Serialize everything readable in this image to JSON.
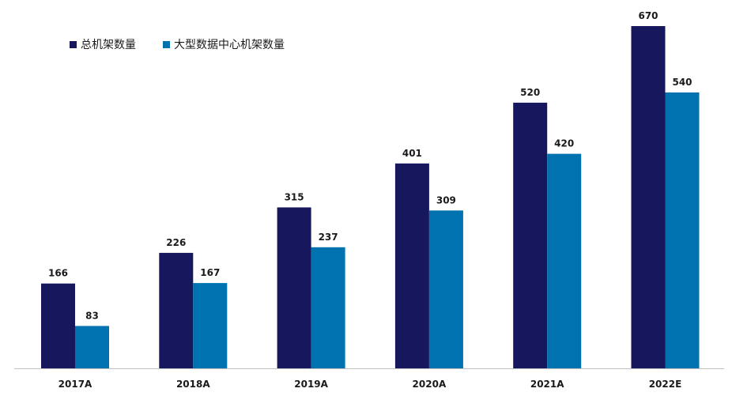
{
  "colors": {
    "series_total": "#17175e",
    "series_large": "#0072b0",
    "axis": "#bfbfbf",
    "text": "#1a1a1a"
  },
  "legend": {
    "items": [
      {
        "label": "总机架数量",
        "color_key": "series_total"
      },
      {
        "label": "大型数据中心机架数量",
        "color_key": "series_large"
      }
    ],
    "position": "top-left"
  },
  "chart_data": {
    "type": "bar",
    "title": "",
    "xlabel": "",
    "ylabel": "",
    "categories": [
      "2017A",
      "2018A",
      "2019A",
      "2020A",
      "2021A",
      "2022E"
    ],
    "series": [
      {
        "name": "总机架数量",
        "values": [
          166,
          226,
          315,
          401,
          520,
          670
        ]
      },
      {
        "name": "大型数据中心机架数量",
        "values": [
          83,
          167,
          237,
          309,
          420,
          540
        ]
      }
    ],
    "ylim": [
      0,
      670
    ],
    "grid": false,
    "data_labels": true
  }
}
